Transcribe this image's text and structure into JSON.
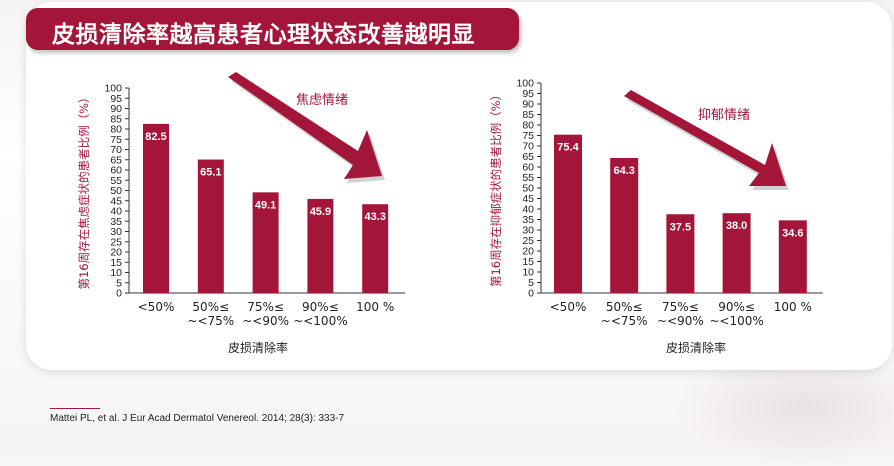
{
  "title": "皮损清除率越高患者心理状态改善越明显",
  "citation": "Mattei PL, et al. J Eur Acad Dermatol Venereol. 2014; 28(3): 333-7",
  "colors": {
    "accent": "#a31539",
    "axis": "#333333"
  },
  "chart_data": [
    {
      "type": "bar",
      "title": "焦虑情绪",
      "xlabel": "皮损清除率",
      "ylabel": "第16周存在焦虑症状的患者比例（%）",
      "categories": [
        [
          "<50%"
        ],
        [
          "50%≤",
          "~<75%"
        ],
        [
          "75%≤",
          "~<90%"
        ],
        [
          "90%≤",
          "~<100%"
        ],
        [
          "100 %"
        ]
      ],
      "values": [
        82.5,
        65.1,
        49.1,
        45.9,
        43.3
      ],
      "value_labels": [
        "82.5",
        "65.1",
        "49.1",
        "45.9",
        "43.3"
      ],
      "ylim": [
        0,
        100
      ],
      "yticks": [
        0,
        5,
        10,
        15,
        20,
        25,
        30,
        35,
        40,
        45,
        50,
        55,
        60,
        65,
        70,
        75,
        80,
        85,
        90,
        95,
        100
      ],
      "grid": false,
      "annotation": "downward trend arrow"
    },
    {
      "type": "bar",
      "title": "抑郁情绪",
      "xlabel": "皮损清除率",
      "ylabel": "第16周存在抑郁症状的患者比例（%）",
      "categories": [
        [
          "<50%"
        ],
        [
          "50%≤",
          "~<75%"
        ],
        [
          "75%≤",
          "~<90%"
        ],
        [
          "90%≤",
          "~<100%"
        ],
        [
          "100 %"
        ]
      ],
      "values": [
        75.4,
        64.3,
        37.5,
        38.0,
        34.6
      ],
      "value_labels": [
        "75.4",
        "64.3",
        "37.5",
        "38.0",
        "34.6"
      ],
      "ylim": [
        0,
        100
      ],
      "yticks": [
        0,
        5,
        10,
        15,
        20,
        25,
        30,
        35,
        40,
        45,
        50,
        55,
        60,
        65,
        70,
        75,
        80,
        85,
        90,
        95,
        100
      ],
      "grid": false,
      "annotation": "downward trend arrow"
    }
  ]
}
